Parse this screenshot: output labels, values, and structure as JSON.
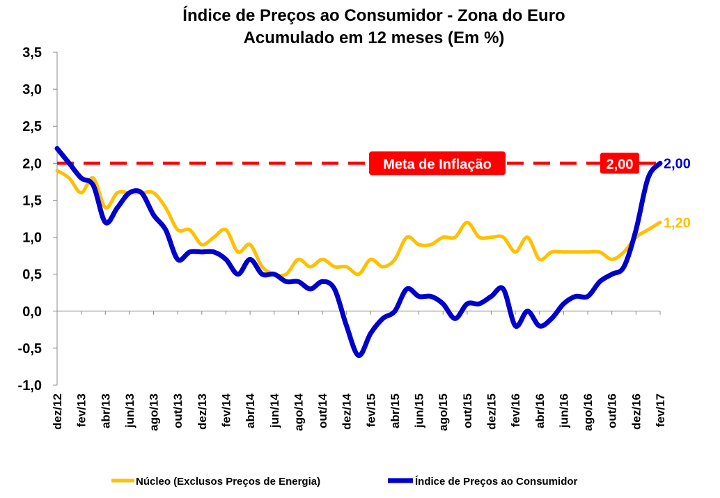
{
  "chart_data": {
    "type": "line",
    "title_line1": "Índice de Preços ao Consumidor - Zona do Euro",
    "title_line2": "Acumulado em 12 meses (Em %)",
    "ylim": [
      -1.0,
      3.5
    ],
    "yticks": [
      "-1,0",
      "-0,5",
      "0,0",
      "0,5",
      "1,0",
      "1,5",
      "2,0",
      "2,5",
      "3,0",
      "3,5"
    ],
    "ytick_values": [
      -1.0,
      -0.5,
      0.0,
      0.5,
      1.0,
      1.5,
      2.0,
      2.5,
      3.0,
      3.5
    ],
    "x": [
      "dez/12",
      "jan/13",
      "fev/13",
      "mar/13",
      "abr/13",
      "mai/13",
      "jun/13",
      "jul/13",
      "ago/13",
      "set/13",
      "out/13",
      "nov/13",
      "dez/13",
      "jan/14",
      "fev/14",
      "mar/14",
      "abr/14",
      "mai/14",
      "jun/14",
      "jul/14",
      "ago/14",
      "set/14",
      "out/14",
      "nov/14",
      "dez/14",
      "jan/15",
      "fev/15",
      "mar/15",
      "abr/15",
      "mai/15",
      "jun/15",
      "jul/15",
      "ago/15",
      "set/15",
      "out/15",
      "nov/15",
      "dez/15",
      "jan/16",
      "fev/16",
      "mar/16",
      "abr/16",
      "mai/16",
      "jun/16",
      "jul/16",
      "ago/16",
      "set/16",
      "out/16",
      "nov/16",
      "dez/16",
      "jan/17",
      "fev/17"
    ],
    "xtick_labels": [
      "dez/12",
      "fev/13",
      "abr/13",
      "jun/13",
      "ago/13",
      "out/13",
      "dez/13",
      "fev/14",
      "abr/14",
      "jun/14",
      "ago/14",
      "out/14",
      "dez/14",
      "fev/15",
      "abr/15",
      "jun/15",
      "ago/15",
      "out/15",
      "dez/15",
      "fev/16",
      "abr/16",
      "jun/16",
      "ago/16",
      "out/16",
      "dez/16",
      "fev/17"
    ],
    "xtick_indices": [
      0,
      2,
      4,
      6,
      8,
      10,
      12,
      14,
      16,
      18,
      20,
      22,
      24,
      26,
      28,
      30,
      32,
      34,
      36,
      38,
      40,
      42,
      44,
      46,
      48,
      50
    ],
    "series": [
      {
        "name": "Núcleo (Exclusos Preços de Energia)",
        "color": "#FFC000",
        "values": [
          1.9,
          1.8,
          1.6,
          1.8,
          1.4,
          1.6,
          1.6,
          1.6,
          1.6,
          1.4,
          1.1,
          1.1,
          0.9,
          1.0,
          1.1,
          0.8,
          0.9,
          0.6,
          0.5,
          0.5,
          0.7,
          0.6,
          0.7,
          0.6,
          0.6,
          0.5,
          0.7,
          0.6,
          0.7,
          1.0,
          0.9,
          0.9,
          1.0,
          1.0,
          1.2,
          1.0,
          1.0,
          1.0,
          0.8,
          1.0,
          0.7,
          0.8,
          0.8,
          0.8,
          0.8,
          0.8,
          0.7,
          0.8,
          1.0,
          1.1,
          1.2
        ]
      },
      {
        "name": "Índice de Preços ao Consumidor",
        "color": "#0000CC",
        "values": [
          2.2,
          2.0,
          1.8,
          1.7,
          1.2,
          1.4,
          1.6,
          1.6,
          1.3,
          1.1,
          0.7,
          0.8,
          0.8,
          0.8,
          0.7,
          0.5,
          0.7,
          0.5,
          0.5,
          0.4,
          0.4,
          0.3,
          0.4,
          0.3,
          -0.2,
          -0.6,
          -0.3,
          -0.1,
          0.0,
          0.3,
          0.2,
          0.2,
          0.1,
          -0.1,
          0.1,
          0.1,
          0.2,
          0.3,
          -0.2,
          0.0,
          -0.2,
          -0.1,
          0.1,
          0.2,
          0.2,
          0.4,
          0.5,
          0.6,
          1.1,
          1.8,
          2.0
        ]
      }
    ],
    "target_line": {
      "value": 2.0,
      "label": "Meta de Inflação",
      "value_label": "2,00",
      "color": "#FF0000"
    },
    "end_labels": [
      {
        "text": "2,00",
        "color": "#0000CC",
        "value": 2.0
      },
      {
        "text": "1,20",
        "color": "#FFC000",
        "value": 1.2
      }
    ],
    "legend_position": "bottom",
    "grid": false
  }
}
